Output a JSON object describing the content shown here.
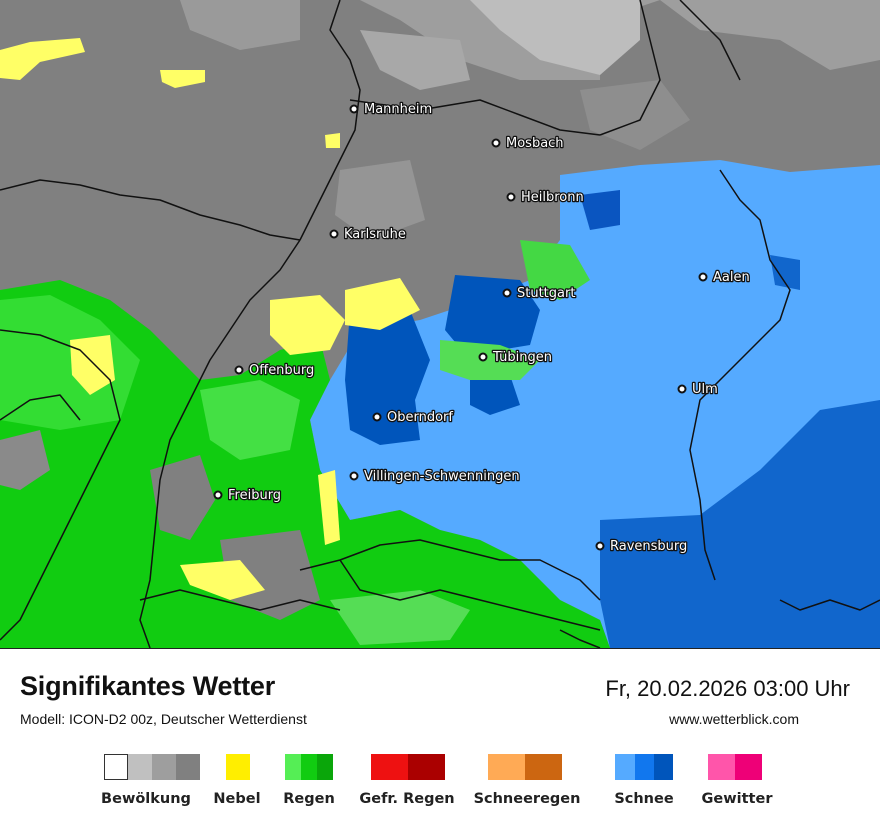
{
  "map": {
    "cities": [
      {
        "name": "Mannheim"
      },
      {
        "name": "Mosbach"
      },
      {
        "name": "Heilbronn"
      },
      {
        "name": "Karlsruhe"
      },
      {
        "name": "Aalen"
      },
      {
        "name": "Stuttgart"
      },
      {
        "name": "Tübingen"
      },
      {
        "name": "Offenburg"
      },
      {
        "name": "Ulm"
      },
      {
        "name": "Oberndorf"
      },
      {
        "name": "Villingen-Schwenningen"
      },
      {
        "name": "Freiburg"
      },
      {
        "name": "Ravensburg"
      }
    ],
    "colors": {
      "cloud_dark": "#808080",
      "cloud_mid": "#9e9e9e",
      "cloud_light": "#bdbdbd",
      "fog": "#ffff66",
      "rain_light": "#55dd55",
      "rain_mid": "#11cc11",
      "snow_light": "#55aaff",
      "snow_dark": "#0055bb",
      "border": "#111111"
    }
  },
  "footer": {
    "title": "Signifikantes Wetter",
    "subtitle": "Modell: ICON-D2 00z, Deutscher Wetterdienst",
    "datetime": "Fr, 20.02.2026 03:00 Uhr",
    "website": "www.wetterblick.com"
  },
  "legend": [
    {
      "label": "Bewölkung",
      "colors": [
        "#ffffff",
        "#c0c0c0",
        "#9e9e9e",
        "#808080"
      ]
    },
    {
      "label": "Nebel",
      "colors": [
        "#ffee00"
      ]
    },
    {
      "label": "Regen",
      "colors": [
        "#55ee55",
        "#11cc11",
        "#0aa60a"
      ]
    },
    {
      "label": "Gefr. Regen",
      "colors": [
        "#ee1111",
        "#aa0000"
      ]
    },
    {
      "label": "Schneeregen",
      "colors": [
        "#ffaa55",
        "#cc6611"
      ]
    },
    {
      "label": "Schnee",
      "colors": [
        "#55aaff",
        "#1177ee",
        "#0055bb"
      ]
    },
    {
      "label": "Gewitter",
      "colors": [
        "#ff55aa",
        "#ee0077"
      ]
    }
  ]
}
